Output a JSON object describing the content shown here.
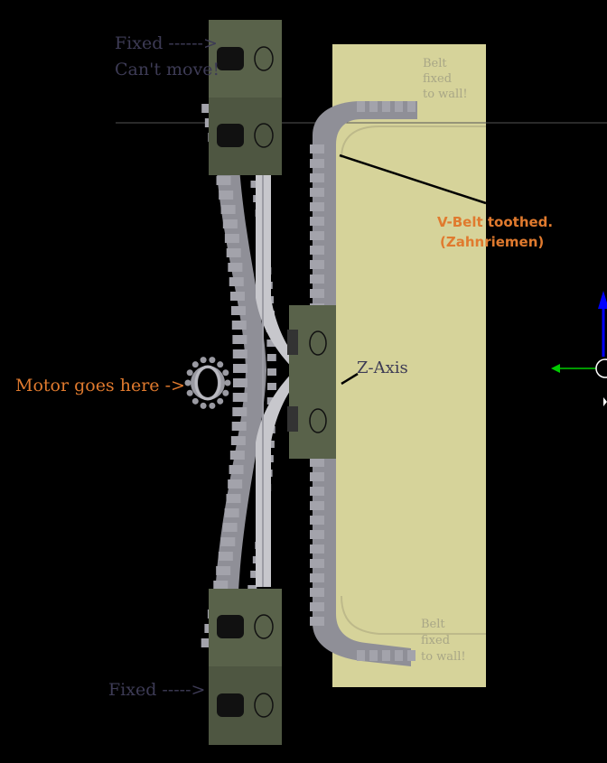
{
  "labels": {
    "fixed_top_1": "Fixed ------>",
    "fixed_top_2": "Can't move!",
    "fixed_bottom": "Fixed ----->",
    "motor": "Motor goes here ->",
    "z_axis": "Z-Axis",
    "vbelt_1": "V-Belt toothed.",
    "vbelt_2": "(Zahnriemen)",
    "belt_top_1": "Belt",
    "belt_top_2": "fixed",
    "belt_top_3": "to wall!",
    "belt_bottom_1": "Belt",
    "belt_bottom_2": "fixed",
    "belt_bottom_3": "to wall!"
  },
  "colors": {
    "background": "#000000",
    "wall": "#d6d39a",
    "block": "#59624a",
    "block_dark": "#454d39",
    "belt": "#8f8f97",
    "belt_light": "#b9b9c0",
    "label_grey": "#3d3b55",
    "label_orange": "#e07a2e",
    "label_wall": "#a8a686",
    "axis_blue": "#0000ff",
    "axis_green": "#00cc00"
  }
}
